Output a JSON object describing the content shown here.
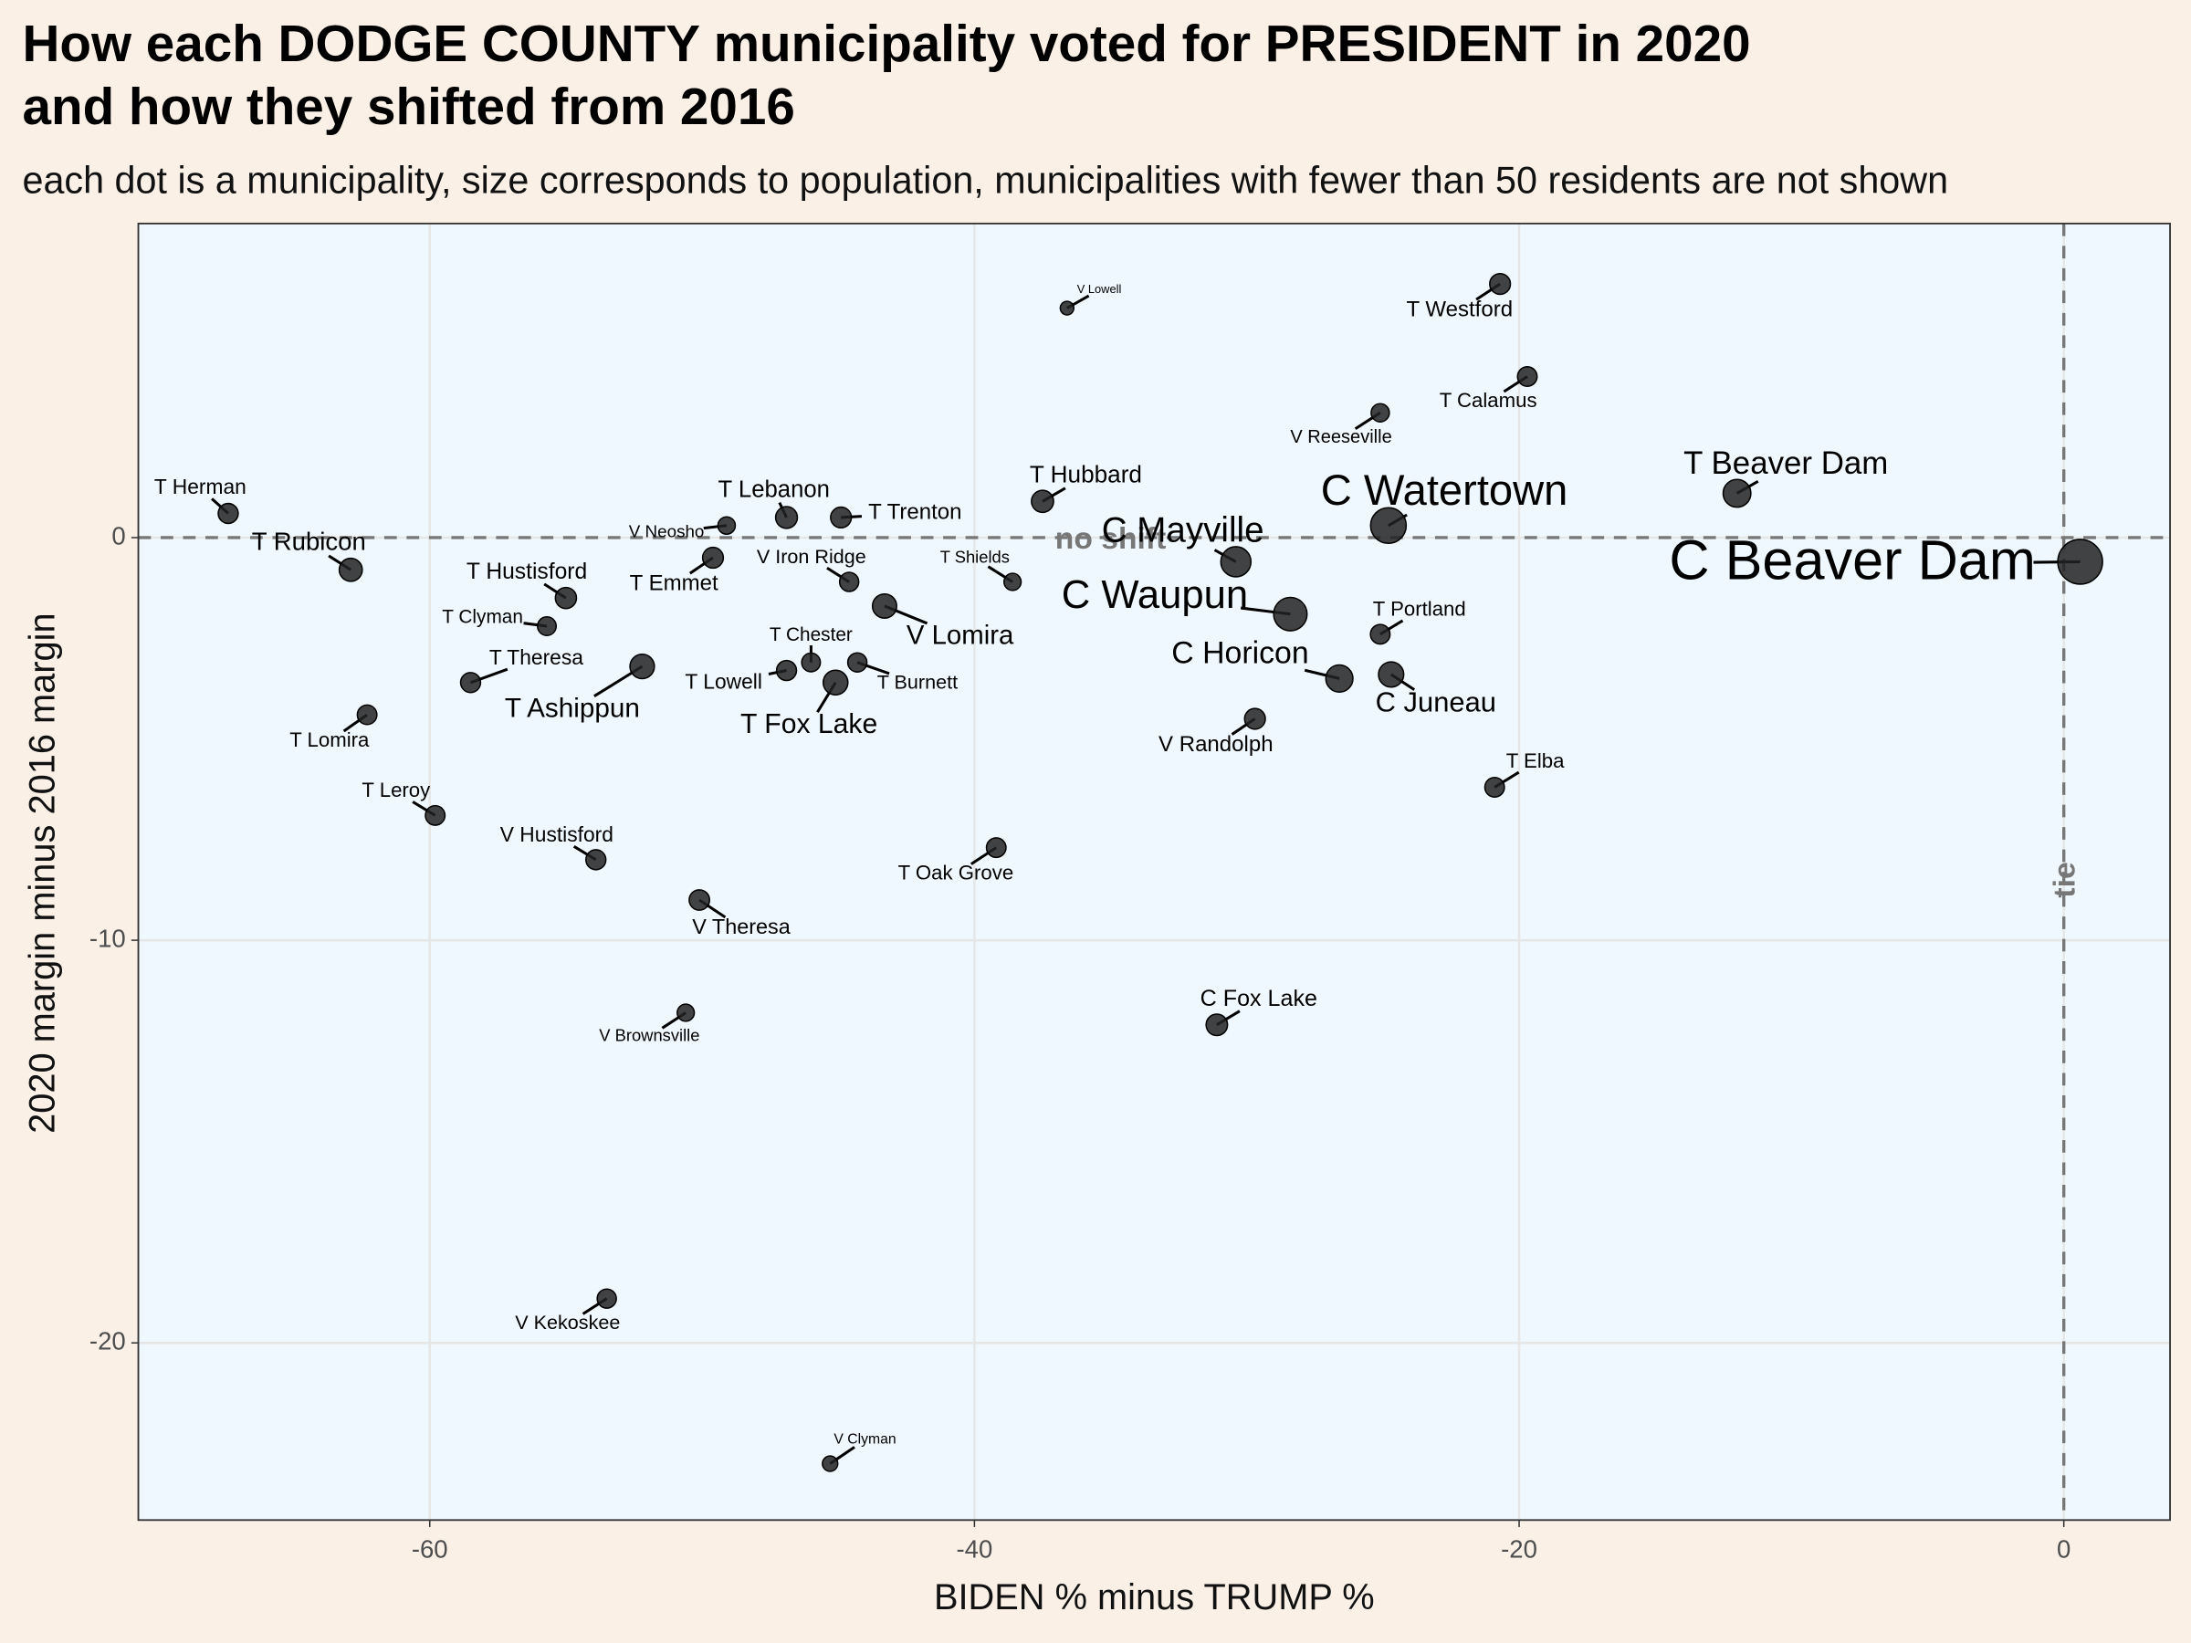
{
  "chart_data": {
    "type": "scatter",
    "title": [
      "How each DODGE COUNTY municipality voted for PRESIDENT in 2020",
      "and how they shifted from 2016"
    ],
    "subtitle": "each dot is a municipality, size corresponds to population, municipalities with fewer than 50 residents are not shown",
    "x_label": "BIDEN % minus TRUMP %",
    "y_label": "2020 margin minus 2016 margin",
    "xlim": [
      -70.7,
      3.9
    ],
    "ylim": [
      -24.4,
      7.8
    ],
    "xticks": [
      -60,
      -40,
      -20,
      0
    ],
    "yticks": [
      -20,
      -10,
      0
    ],
    "grid": true,
    "color": "#222222",
    "reference_lines": [
      {
        "axis": "y",
        "value": 0,
        "label": "no shift",
        "at": -35
      },
      {
        "axis": "x",
        "value": 0,
        "label": "tie",
        "at": -8.5
      }
    ],
    "points": [
      {
        "label": "V Lowell",
        "x": -36.6,
        "y": 5.7,
        "size": 80
      },
      {
        "label": "T Westford",
        "x": -20.7,
        "y": 6.3,
        "size": 1300
      },
      {
        "label": "T Calamus",
        "x": -19.7,
        "y": 4.0,
        "size": 1000
      },
      {
        "label": "V Reeseville",
        "x": -25.1,
        "y": 3.1,
        "size": 700
      },
      {
        "label": "T Beaver Dam",
        "x": -12.0,
        "y": 1.1,
        "size": 3900
      },
      {
        "label": "C Watertown",
        "x": -24.8,
        "y": 0.3,
        "size": 8500
      },
      {
        "label": "C Beaver Dam",
        "x": 0.6,
        "y": -0.6,
        "size": 16000
      },
      {
        "label": "T Hubbard",
        "x": -37.5,
        "y": 0.9,
        "size": 1700
      },
      {
        "label": "C Mayville",
        "x": -30.4,
        "y": -0.6,
        "size": 5100
      },
      {
        "label": "C Waupun",
        "x": -28.4,
        "y": -1.9,
        "size": 7000
      },
      {
        "label": "T Herman",
        "x": -67.4,
        "y": 0.6,
        "size": 1100
      },
      {
        "label": "T Rubicon",
        "x": -62.9,
        "y": -0.8,
        "size": 2000
      },
      {
        "label": "V Neosho",
        "x": -49.1,
        "y": 0.3,
        "size": 550
      },
      {
        "label": "T Lebanon",
        "x": -46.9,
        "y": 0.5,
        "size": 1600
      },
      {
        "label": "T Trenton",
        "x": -44.9,
        "y": 0.5,
        "size": 1300
      },
      {
        "label": "T Emmet",
        "x": -49.6,
        "y": -0.5,
        "size": 1300
      },
      {
        "label": "V Iron Ridge",
        "x": -44.6,
        "y": -1.1,
        "size": 900
      },
      {
        "label": "T Shields",
        "x": -38.6,
        "y": -1.1,
        "size": 500
      },
      {
        "label": "V Lomira",
        "x": -43.3,
        "y": -1.7,
        "size": 2400
      },
      {
        "label": "T Hustisford",
        "x": -55.0,
        "y": -1.5,
        "size": 1400
      },
      {
        "label": "T Clyman",
        "x": -55.7,
        "y": -2.2,
        "size": 800
      },
      {
        "label": "T Theresa",
        "x": -58.5,
        "y": -3.6,
        "size": 1100
      },
      {
        "label": "T Ashippun",
        "x": -52.2,
        "y": -3.2,
        "size": 2500
      },
      {
        "label": "T Chester",
        "x": -46.0,
        "y": -3.1,
        "size": 800
      },
      {
        "label": "T Lowell",
        "x": -46.9,
        "y": -3.3,
        "size": 1100
      },
      {
        "label": "T Burnett",
        "x": -44.3,
        "y": -3.1,
        "size": 900
      },
      {
        "label": "T Fox Lake",
        "x": -45.1,
        "y": -3.6,
        "size": 2600
      },
      {
        "label": "T Portland",
        "x": -25.1,
        "y": -2.4,
        "size": 1000
      },
      {
        "label": "C Horicon",
        "x": -26.6,
        "y": -3.5,
        "size": 3600
      },
      {
        "label": "C Juneau",
        "x": -24.7,
        "y": -3.4,
        "size": 2800
      },
      {
        "label": "V Randolph",
        "x": -29.7,
        "y": -4.5,
        "size": 1300
      },
      {
        "label": "T Lomira",
        "x": -62.3,
        "y": -4.4,
        "size": 1000
      },
      {
        "label": "T Elba",
        "x": -20.9,
        "y": -6.2,
        "size": 1000
      },
      {
        "label": "T Leroy",
        "x": -59.8,
        "y": -6.9,
        "size": 1000
      },
      {
        "label": "V Hustisford",
        "x": -53.9,
        "y": -8.0,
        "size": 1100
      },
      {
        "label": "V Theresa",
        "x": -50.1,
        "y": -9.0,
        "size": 1200
      },
      {
        "label": "T Oak Grove",
        "x": -39.2,
        "y": -7.7,
        "size": 1000
      },
      {
        "label": "C Fox Lake",
        "x": -31.1,
        "y": -12.1,
        "size": 1500
      },
      {
        "label": "V Brownsville",
        "x": -50.6,
        "y": -11.8,
        "size": 500
      },
      {
        "label": "V Kekoskee",
        "x": -53.5,
        "y": -18.9,
        "size": 900
      },
      {
        "label": "V Clyman",
        "x": -45.3,
        "y": -23.0,
        "size": 250
      }
    ]
  }
}
